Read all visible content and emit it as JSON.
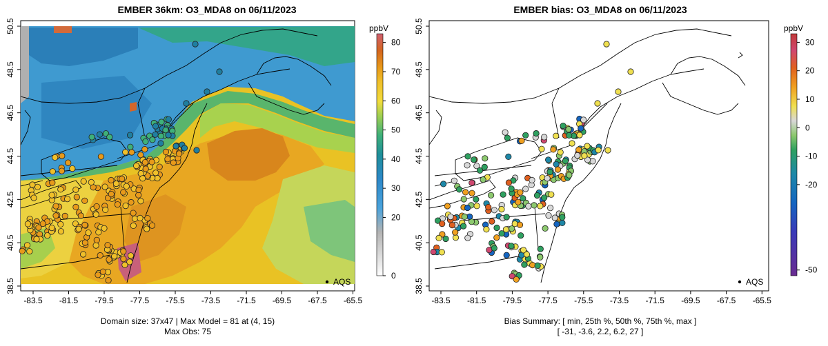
{
  "panels": [
    {
      "id": "model",
      "title": "EMBER 36km: O3_MDA8 on 06/11/2023",
      "colorbar": {
        "unit": "ppbV",
        "ticks": [
          "0",
          "20",
          "30",
          "40",
          "50",
          "60",
          "70",
          "80"
        ],
        "range": [
          0,
          83
        ]
      },
      "footer": [
        "Domain size: 37x47 | Max Model = 81 at (4, 15)",
        "Max Obs: 75"
      ],
      "legend": "AQS",
      "x_ticks": [
        "-83.5",
        "-81.5",
        "-79.5",
        "-77.5",
        "-75.5",
        "-73.5",
        "-71.5",
        "-69.5",
        "-67.5",
        "-65.5"
      ],
      "y_ticks": [
        "38.5",
        "40.5",
        "42.5",
        "44.5",
        "46.5",
        "48.5",
        "50.5"
      ]
    },
    {
      "id": "bias",
      "title": "EMBER bias: O3_MDA8 on 06/11/2023",
      "colorbar": {
        "unit": "ppbV",
        "ticks": [
          "-50",
          "-20",
          "-10",
          "0",
          "10",
          "20",
          "30"
        ],
        "range": [
          -52,
          33
        ]
      },
      "footer": [
        "Bias Summary: [ min, 25th %, 50th %, 75th %, max ]",
        "[ -31,   -3.6,   2.2,   6.2,   27 ]"
      ],
      "legend": "AQS",
      "x_ticks": [
        "-83.5",
        "-81.5",
        "-79.5",
        "-77.5",
        "-75.5",
        "-73.5",
        "-71.5",
        "-69.5",
        "-67.5",
        "-65.5"
      ],
      "y_ticks": [
        "38.5",
        "40.5",
        "42.5",
        "44.5",
        "46.5",
        "48.5",
        "50.5"
      ]
    }
  ],
  "colors": {
    "ozone_scale": [
      "#ffffff",
      "#b3b3b3",
      "#4aa3dc",
      "#2c88c8",
      "#1f7fa0",
      "#3eb07a",
      "#9fcf52",
      "#f2dc3c",
      "#f0c02a",
      "#e89a1a",
      "#d4661e",
      "#c0564a",
      "#d06070"
    ],
    "bias_scale": [
      "#6a2c91",
      "#3a3ab8",
      "#1565c0",
      "#1e88a8",
      "#2fa060",
      "#8cc86e",
      "#d8d8d8",
      "#f0e050",
      "#f0a020",
      "#e06020",
      "#d04870",
      "#c23a3a"
    ],
    "outline": "#000000"
  }
}
